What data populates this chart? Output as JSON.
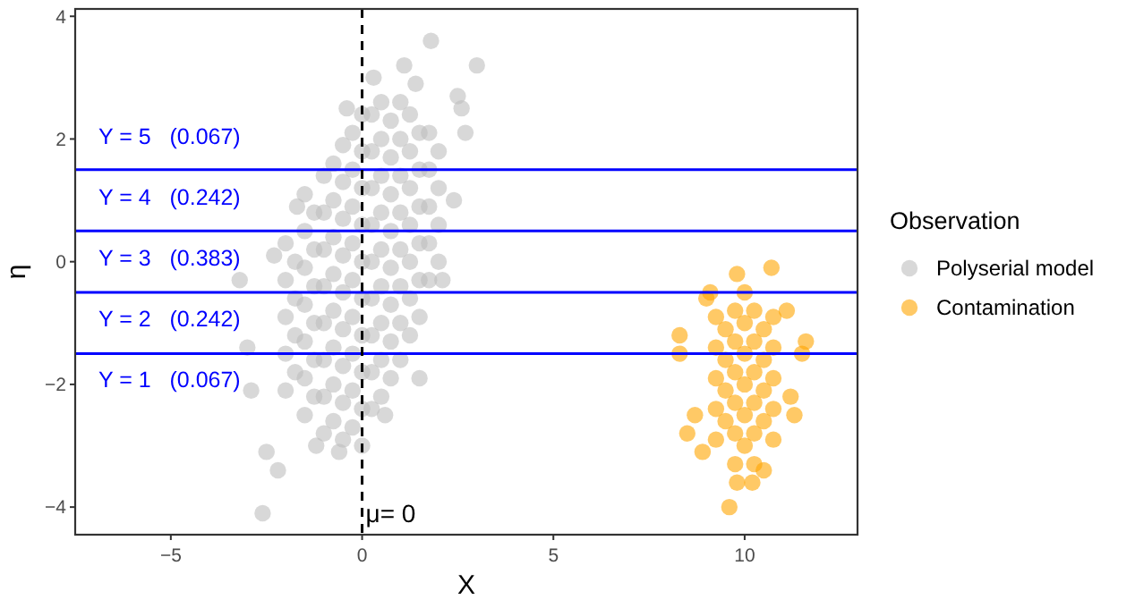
{
  "chart_data": {
    "type": "scatter",
    "xlabel": "X",
    "ylabel": "η",
    "legend_title": "Observation",
    "legend": "right",
    "grid": false,
    "marker": "circle",
    "xlim": [
      -7.5,
      12.95
    ],
    "xticks": [
      -5,
      0,
      5,
      10
    ],
    "ylim": [
      -4.45,
      4.12
    ],
    "yticks": [
      -4,
      -2,
      0,
      2,
      4
    ],
    "series": [
      {
        "name": "Polyserial model",
        "color": "#bebebe",
        "x": [
          -2,
          -2,
          -2,
          -2,
          -2,
          -1.5,
          -1.5,
          -1.5,
          -1.5,
          -1.5,
          -1.5,
          -1.5,
          -1,
          -1,
          -1,
          -1,
          -1,
          -1,
          -1,
          -1,
          -0.5,
          -0.5,
          -0.5,
          -0.5,
          -0.5,
          -0.5,
          -0.5,
          -0.5,
          -0.5,
          0,
          0,
          0,
          0,
          0,
          0,
          0,
          0,
          0,
          0,
          0.5,
          0.5,
          0.5,
          0.5,
          0.5,
          0.5,
          0.5,
          0.5,
          0.5,
          1,
          1,
          1,
          1,
          1,
          1,
          1,
          1,
          1.5,
          1.5,
          1.5,
          1.5,
          1.5,
          1.5,
          2,
          2,
          2,
          2,
          -1.75,
          -1.75,
          -1.75,
          -1.75,
          -1.25,
          -1.25,
          -1.25,
          -1.25,
          -1.25,
          -1.25,
          -0.75,
          -0.75,
          -0.75,
          -0.75,
          -0.75,
          -0.75,
          -0.75,
          -0.75,
          -0.25,
          -0.25,
          -0.25,
          -0.25,
          -0.25,
          -0.25,
          -0.25,
          -0.25,
          -0.25,
          0.25,
          0.25,
          0.25,
          0.25,
          0.25,
          0.25,
          0.25,
          0.25,
          0.25,
          0.75,
          0.75,
          0.75,
          0.75,
          0.75,
          0.75,
          0.75,
          0.75,
          1.25,
          1.25,
          1.25,
          1.25,
          1.25,
          1.25,
          1.25,
          1.75,
          1.75,
          1.75,
          1.75,
          1.75,
          -2.6,
          -2.2,
          -2.5,
          -3,
          -3.2,
          -2.9,
          -1.2,
          -0.6,
          0.6,
          1.5,
          -1.7,
          -2.3,
          -0.4,
          1.8,
          3,
          2.6,
          2.7,
          2.4,
          2.1,
          0.3,
          1.1,
          2.5,
          1.4
        ],
        "values": [
          -2.1,
          -1.5,
          -0.9,
          -0.3,
          0.3,
          -2.5,
          -1.9,
          -1.3,
          -0.7,
          -0.1,
          0.5,
          1.1,
          -2.8,
          -2.2,
          -1.6,
          -1,
          -0.4,
          0.2,
          0.8,
          1.4,
          -2.9,
          -2.3,
          -1.7,
          -1.1,
          -0.5,
          0.1,
          0.7,
          1.3,
          1.9,
          -3,
          -2.4,
          -1.8,
          -1.2,
          -0.6,
          0,
          0.6,
          1.2,
          1.8,
          2.4,
          -2.2,
          -1.6,
          -1,
          -0.4,
          0.2,
          0.8,
          1.4,
          2,
          2.6,
          -1.6,
          -1,
          -0.4,
          0.2,
          0.8,
          1.4,
          2,
          2.6,
          -0.9,
          -0.3,
          0.3,
          0.9,
          1.5,
          2.1,
          0,
          0.6,
          1.2,
          1.8,
          -1.8,
          -1.2,
          -0.6,
          0,
          -2.2,
          -1.6,
          -1,
          -0.4,
          0.2,
          0.8,
          -2.6,
          -2,
          -1.4,
          -0.8,
          -0.2,
          0.4,
          1,
          1.6,
          -2.7,
          -2.1,
          -1.5,
          -0.9,
          -0.3,
          0.3,
          0.9,
          1.5,
          2.1,
          -2.4,
          -1.8,
          -1.2,
          -0.6,
          0,
          0.6,
          1.2,
          1.8,
          2.4,
          -1.9,
          -1.3,
          -0.7,
          -0.1,
          0.5,
          1.1,
          1.7,
          2.3,
          -1.2,
          -0.6,
          0,
          0.6,
          1.2,
          1.8,
          2.4,
          -0.3,
          0.3,
          0.9,
          1.5,
          2.1,
          -4.1,
          -3.4,
          -3.1,
          -1.4,
          -0.3,
          -2.1,
          -3,
          -3.1,
          -2.5,
          -1.9,
          0.9,
          0.1,
          2.5,
          3.6,
          3.2,
          2.5,
          2.1,
          1,
          -0.3,
          3,
          3.2,
          2.7,
          2.9
        ]
      },
      {
        "name": "Contamination",
        "color": "#ffa500",
        "x": [
          9.25,
          9.25,
          9.25,
          9.25,
          9.25,
          9.75,
          9.75,
          9.75,
          9.75,
          9.75,
          9.75,
          10.25,
          10.25,
          10.25,
          10.25,
          10.25,
          10.25,
          10.75,
          10.75,
          10.75,
          10.75,
          10.75,
          9.5,
          9.5,
          9.5,
          9.5,
          10,
          10,
          10,
          10,
          10,
          10,
          10.5,
          10.5,
          10.5,
          10.5,
          9.6,
          9.8,
          10.2,
          10.5,
          8.3,
          8.3,
          8.5,
          8.7,
          9,
          9.1,
          11.6,
          11.5,
          11.2,
          11.3,
          8.9,
          9.8,
          10.7,
          11.1
        ],
        "values": [
          -2.9,
          -2.4,
          -1.9,
          -1.4,
          -0.9,
          -3.3,
          -2.8,
          -2.3,
          -1.8,
          -1.3,
          -0.8,
          -3.3,
          -2.8,
          -2.3,
          -1.8,
          -1.3,
          -0.8,
          -2.9,
          -2.4,
          -1.9,
          -1.4,
          -0.9,
          -2.6,
          -2.1,
          -1.6,
          -1.1,
          -3,
          -2.5,
          -2,
          -1.5,
          -1,
          -0.5,
          -2.6,
          -2.1,
          -1.6,
          -1.1,
          -4,
          -3.6,
          -3.6,
          -3.4,
          -1.2,
          -1.5,
          -2.8,
          -2.5,
          -0.6,
          -0.5,
          -1.3,
          -1.5,
          -2.2,
          -2.5,
          -3.1,
          -0.2,
          -0.1,
          -0.8
        ]
      }
    ],
    "ref_lines": [
      {
        "axis": "y",
        "value": 1.5,
        "color": "#0000ff",
        "line_style": "solid"
      },
      {
        "axis": "y",
        "value": 0.5,
        "color": "#0000ff",
        "line_style": "solid"
      },
      {
        "axis": "y",
        "value": -0.5,
        "color": "#0000ff",
        "line_style": "solid"
      },
      {
        "axis": "y",
        "value": -1.5,
        "color": "#0000ff",
        "line_style": "solid"
      },
      {
        "axis": "x",
        "value": 0,
        "label": "μ= 0",
        "color": "#000000",
        "line_style": "dashed"
      }
    ],
    "annotations": [
      "Y = 5   (0.067)",
      "Y = 4   (0.242)",
      "Y = 3   (0.383)",
      "Y = 2   (0.242)",
      "Y = 1   (0.067)"
    ]
  }
}
